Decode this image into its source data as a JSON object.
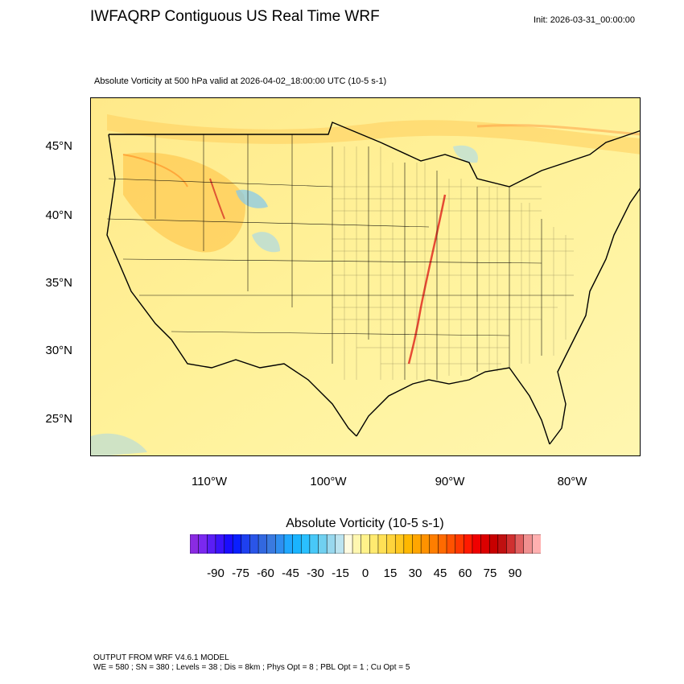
{
  "header": {
    "title": "IWFAQRP Contiguous US Real Time WRF",
    "init": "Init: 2026-03-31_00:00:00",
    "subtitle": "Absolute Vorticity at 500 hPa valid at 2026-04-02_18:00:00 UTC   (10-5 s-1)"
  },
  "map": {
    "lat_labels": [
      "45°N",
      "40°N",
      "35°N",
      "30°N",
      "25°N"
    ],
    "lon_labels": [
      "110°W",
      "100°W",
      "90°W",
      "80°W"
    ],
    "base_color": "#fff08a",
    "land_color": "#fce487",
    "max_color": "#e0201a"
  },
  "colorbar": {
    "title": "Absolute Vorticity  (10-5 s-1)",
    "labels": [
      "-90",
      "-75",
      "-60",
      "-45",
      "-30",
      "-15",
      "0",
      "15",
      "30",
      "45",
      "60",
      "75",
      "90"
    ],
    "colors": [
      "#8a2be2",
      "#7a28f0",
      "#5a1ef5",
      "#3b14fa",
      "#1a0dff",
      "#0a1fff",
      "#1e40f0",
      "#2a55e8",
      "#3268e0",
      "#3a7ae0",
      "#2f8ef0",
      "#20a8ff",
      "#1ab4ff",
      "#2ac0ff",
      "#48c8f8",
      "#70d0f0",
      "#98d8ee",
      "#bce4f0",
      "#fffbe0",
      "#fff7b0",
      "#fff28a",
      "#ffea70",
      "#ffe055",
      "#ffd43c",
      "#ffc820",
      "#ffb800",
      "#ffa600",
      "#ff9200",
      "#ff7e00",
      "#ff6a00",
      "#ff5200",
      "#ff3800",
      "#ff1a00",
      "#f00000",
      "#dc0000",
      "#c80000",
      "#c01010",
      "#d03030",
      "#e06060",
      "#f09090",
      "#ffb0b0"
    ]
  },
  "footer": {
    "line1": "OUTPUT FROM WRF V4.6.1 MODEL",
    "line2": "WE = 580 ; SN = 380 ; Levels = 38 ; Dis = 8km ; Phys Opt = 8 ; PBL Opt = 1 ; Cu Opt = 5"
  }
}
